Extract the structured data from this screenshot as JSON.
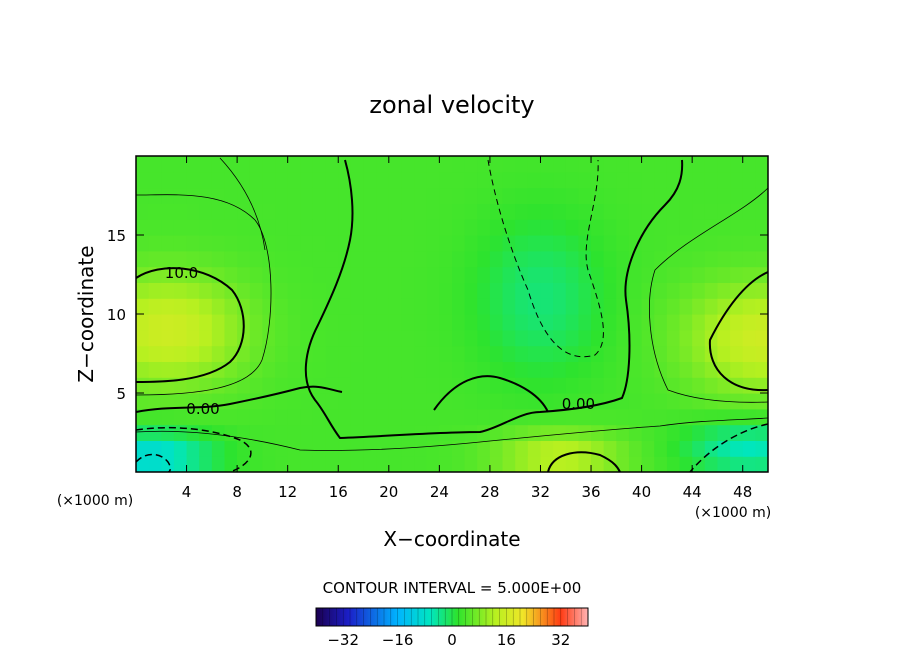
{
  "chart_data": {
    "type": "heatmap",
    "title": "zonal velocity",
    "xlabel": "X−coordinate",
    "ylabel": "Z−coordinate",
    "x_unit_left": "(×1000 m)",
    "x_unit_right": "(×1000 m)",
    "xlim": [
      0,
      50
    ],
    "ylim": [
      0,
      20
    ],
    "x_ticks": [
      4,
      8,
      12,
      16,
      20,
      24,
      28,
      32,
      36,
      40,
      44,
      48
    ],
    "y_ticks": [
      5,
      10,
      15
    ],
    "contour_interval_text": "CONTOUR INTERVAL = 5.000E+00",
    "contour_labels": [
      {
        "text": "10.0",
        "x": 3.6,
        "z": 12.6
      },
      {
        "text": "0.00",
        "x": 5.3,
        "z": 4.0
      },
      {
        "text": "0.00",
        "x": 35.0,
        "z": 4.3
      }
    ],
    "colorbar": {
      "min": -40,
      "max": 40,
      "ticks": [
        -32,
        -16,
        0,
        16,
        32
      ],
      "tick_labels": [
        "−32",
        "−16",
        "0",
        "16",
        "32"
      ]
    },
    "features": [
      {
        "kind": "max",
        "x": 2.5,
        "z": 9.0,
        "value": 15
      },
      {
        "kind": "max",
        "x": 49.5,
        "z": 8.5,
        "value": 15
      },
      {
        "kind": "min",
        "x": 1.0,
        "z": 1.0,
        "value": -10
      },
      {
        "kind": "min",
        "x": 48.5,
        "z": 1.5,
        "value": -7
      },
      {
        "kind": "max",
        "x": 33.5,
        "z": 1.0,
        "value": 13
      }
    ]
  }
}
